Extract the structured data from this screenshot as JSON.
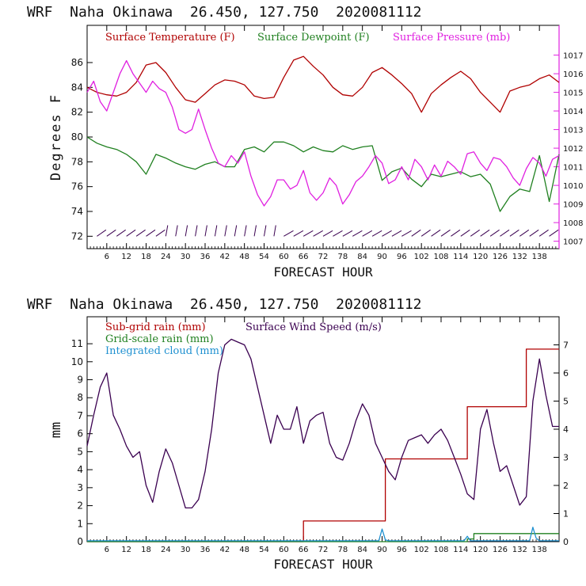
{
  "charts": [
    {
      "title": "WRF  Naha Okinawa  26.450, 127.750  2020081112",
      "xlabel": "FORECAST HOUR",
      "ylabel": "Degrees F",
      "legend": [
        {
          "label": "Surface Temperature (F)",
          "color": "#b00000"
        },
        {
          "label": "Surface Dewpoint (F)",
          "color": "#208020"
        },
        {
          "label": "Surface Pressure (mb)",
          "color": "#e020e0"
        }
      ]
    },
    {
      "title": "WRF  Naha Okinawa  26.450, 127.750  2020081112",
      "xlabel": "FORECAST HOUR",
      "ylabel": "mm",
      "legend": [
        {
          "label": "Sub-grid rain (mm)",
          "color": "#b00000"
        },
        {
          "label": "Grid-scale rain (mm)",
          "color": "#208020"
        },
        {
          "label": "Integrated cloud (mm)",
          "color": "#1e90d0"
        },
        {
          "label": "Surface Wind Speed (m/s)",
          "color": "#3a0050"
        }
      ]
    }
  ],
  "chart_data": [
    {
      "type": "line",
      "title": "WRF  Naha Okinawa  26.450, 127.750  2020081112",
      "xlabel": "FORECAST HOUR",
      "ylabel": "Degrees F",
      "xlim": [
        0,
        144
      ],
      "xticks": [
        6,
        12,
        18,
        24,
        30,
        36,
        42,
        48,
        54,
        60,
        66,
        72,
        78,
        84,
        90,
        96,
        102,
        108,
        114,
        120,
        126,
        132,
        138
      ],
      "ylim": [
        71,
        89
      ],
      "yticks": [
        72,
        74,
        76,
        78,
        80,
        82,
        84,
        86
      ],
      "y2lim": [
        1006.6,
        1018.6
      ],
      "y2ticks": [
        1007,
        1008,
        1009,
        1010,
        1011,
        1012,
        1013,
        1014,
        1015,
        1016,
        1017
      ],
      "series": [
        {
          "name": "Surface Temperature (F)",
          "color": "#b00000",
          "axis": "left",
          "x": [
            0,
            3,
            6,
            9,
            12,
            15,
            18,
            21,
            24,
            27,
            30,
            33,
            36,
            39,
            42,
            45,
            48,
            51,
            54,
            57,
            60,
            63,
            66,
            69,
            72,
            75,
            78,
            81,
            84,
            87,
            90,
            93,
            96,
            99,
            102,
            105,
            108,
            111,
            114,
            117,
            120,
            123,
            126,
            129,
            132,
            135,
            138,
            141,
            144
          ],
          "y": [
            84.0,
            83.6,
            83.4,
            83.3,
            83.6,
            84.4,
            85.8,
            86.0,
            85.2,
            84.0,
            83.0,
            82.8,
            83.5,
            84.2,
            84.6,
            84.5,
            84.2,
            83.3,
            83.1,
            83.2,
            84.8,
            86.2,
            86.5,
            85.7,
            85.0,
            84.0,
            83.4,
            83.3,
            84.0,
            85.2,
            85.6,
            85.0,
            84.3,
            83.5,
            82.0,
            83.5,
            84.2,
            84.8,
            85.3,
            84.7,
            83.6,
            82.8,
            82.0,
            83.7,
            84.0,
            84.2,
            84.7,
            85.0,
            84.4
          ]
        },
        {
          "name": "Surface Dewpoint (F)",
          "color": "#208020",
          "axis": "left",
          "x": [
            0,
            3,
            6,
            9,
            12,
            15,
            18,
            21,
            24,
            27,
            30,
            33,
            36,
            39,
            42,
            45,
            48,
            51,
            54,
            57,
            60,
            63,
            66,
            69,
            72,
            75,
            78,
            81,
            84,
            87,
            90,
            93,
            96,
            99,
            102,
            105,
            108,
            111,
            114,
            117,
            120,
            123,
            126,
            129,
            132,
            135,
            138,
            141,
            144
          ],
          "y": [
            80.0,
            79.5,
            79.2,
            79.0,
            78.6,
            78.0,
            77.0,
            78.6,
            78.3,
            77.9,
            77.6,
            77.4,
            77.8,
            78.0,
            77.6,
            77.6,
            79.0,
            79.2,
            78.8,
            79.6,
            79.6,
            79.3,
            78.8,
            79.2,
            78.9,
            78.8,
            79.3,
            79.0,
            79.2,
            79.3,
            76.5,
            77.2,
            77.5,
            76.6,
            76.0,
            77.0,
            76.8,
            77.0,
            77.2,
            76.8,
            77.0,
            76.2,
            74.0,
            75.2,
            75.8,
            75.6,
            78.5,
            74.8,
            78.6
          ]
        },
        {
          "name": "Surface Pressure (mb)",
          "color": "#e020e0",
          "axis": "right",
          "x": [
            0,
            2,
            4,
            6,
            8,
            10,
            12,
            14,
            16,
            18,
            20,
            22,
            24,
            26,
            28,
            30,
            32,
            34,
            36,
            38,
            40,
            42,
            44,
            46,
            48,
            50,
            52,
            54,
            56,
            58,
            60,
            62,
            64,
            66,
            68,
            70,
            72,
            74,
            76,
            78,
            80,
            82,
            84,
            86,
            88,
            90,
            92,
            94,
            96,
            98,
            100,
            102,
            104,
            106,
            108,
            110,
            112,
            114,
            116,
            118,
            120,
            122,
            124,
            126,
            128,
            130,
            132,
            134,
            136,
            138,
            140,
            142,
            144
          ],
          "y": [
            1015.0,
            1015.6,
            1014.5,
            1014.0,
            1015.0,
            1016.0,
            1016.7,
            1016.0,
            1015.5,
            1015.0,
            1015.6,
            1015.2,
            1015.0,
            1014.2,
            1013.0,
            1012.8,
            1013.0,
            1014.1,
            1013.0,
            1012.0,
            1011.2,
            1011.0,
            1011.6,
            1011.2,
            1011.8,
            1010.5,
            1009.5,
            1008.9,
            1009.4,
            1010.3,
            1010.3,
            1009.8,
            1010.0,
            1010.8,
            1009.6,
            1009.2,
            1009.6,
            1010.4,
            1010.0,
            1009.0,
            1009.5,
            1010.2,
            1010.5,
            1011.0,
            1011.6,
            1011.2,
            1010.1,
            1010.3,
            1011.0,
            1010.3,
            1011.4,
            1011.0,
            1010.3,
            1011.1,
            1010.5,
            1011.3,
            1011.0,
            1010.6,
            1011.7,
            1011.8,
            1011.2,
            1010.8,
            1011.5,
            1011.4,
            1011.0,
            1010.4,
            1010.0,
            1010.9,
            1011.5,
            1011.2,
            1010.5,
            1011.4,
            1011.6
          ]
        }
      ],
      "wind_barbs": "row of wind barbs along y ≈ 72"
    },
    {
      "type": "line",
      "title": "WRF  Naha Okinawa  26.450, 127.750  2020081112",
      "xlabel": "FORECAST HOUR",
      "ylabel": "mm",
      "xlim": [
        0,
        144
      ],
      "xticks": [
        6,
        12,
        18,
        24,
        30,
        36,
        42,
        48,
        54,
        60,
        66,
        72,
        78,
        84,
        90,
        96,
        102,
        108,
        114,
        120,
        126,
        132,
        138
      ],
      "ylim": [
        0,
        12.5
      ],
      "yticks": [
        0,
        1,
        2,
        3,
        4,
        5,
        6,
        7,
        8,
        9,
        10,
        11
      ],
      "y2lim": [
        0,
        8.0
      ],
      "y2ticks": [
        0,
        1,
        2,
        3,
        4,
        5,
        6,
        7
      ],
      "series": [
        {
          "name": "Sub-grid rain (mm)",
          "color": "#b00000",
          "axis": "left",
          "step": true,
          "x": [
            0,
            66,
            66,
            91,
            91,
            116,
            116,
            134,
            134,
            144
          ],
          "y": [
            0,
            0,
            1.15,
            1.15,
            4.6,
            4.6,
            7.5,
            7.5,
            10.7,
            10.7
          ]
        },
        {
          "name": "Grid-scale rain (mm)",
          "color": "#208020",
          "axis": "left",
          "step": true,
          "x": [
            0,
            116,
            116,
            118,
            118,
            144
          ],
          "y": [
            0,
            0,
            0.15,
            0.15,
            0.45,
            0.45
          ]
        },
        {
          "name": "Integrated cloud (mm)",
          "color": "#1e90d0",
          "axis": "left",
          "x": [
            0,
            89,
            90,
            91,
            92,
            115,
            116,
            117,
            118,
            135,
            136,
            137,
            138,
            144
          ],
          "y": [
            0.05,
            0.05,
            0.7,
            0.1,
            0.05,
            0.05,
            0.3,
            0.05,
            0.05,
            0.05,
            0.8,
            0.2,
            0.05,
            0.05
          ]
        },
        {
          "name": "Surface Wind Speed (m/s)",
          "color": "#3a0050",
          "axis": "right",
          "x": [
            0,
            2,
            4,
            6,
            8,
            10,
            12,
            14,
            16,
            18,
            20,
            22,
            24,
            26,
            28,
            30,
            32,
            34,
            36,
            38,
            40,
            42,
            44,
            46,
            48,
            50,
            52,
            54,
            56,
            58,
            60,
            62,
            64,
            66,
            68,
            70,
            72,
            74,
            76,
            78,
            80,
            82,
            84,
            86,
            88,
            90,
            92,
            94,
            96,
            98,
            100,
            102,
            104,
            106,
            108,
            110,
            112,
            114,
            116,
            118,
            120,
            122,
            124,
            126,
            128,
            130,
            132,
            134,
            136,
            138,
            140,
            142,
            144
          ],
          "y": [
            3.4,
            4.5,
            5.5,
            6.0,
            4.5,
            4.0,
            3.4,
            3.0,
            3.2,
            2.0,
            1.4,
            2.5,
            3.3,
            2.8,
            2.0,
            1.2,
            1.2,
            1.5,
            2.5,
            4.0,
            6.0,
            7.0,
            7.2,
            7.1,
            7.0,
            6.5,
            5.5,
            4.5,
            3.5,
            4.5,
            4.0,
            4.0,
            4.8,
            3.5,
            4.3,
            4.5,
            4.6,
            3.5,
            3.0,
            2.9,
            3.5,
            4.3,
            4.9,
            4.5,
            3.5,
            3.0,
            2.5,
            2.2,
            3.0,
            3.6,
            3.7,
            3.8,
            3.5,
            3.8,
            4.0,
            3.6,
            3.0,
            2.4,
            1.7,
            1.5,
            4.0,
            4.7,
            3.5,
            2.5,
            2.7,
            2.0,
            1.3,
            1.6,
            5.0,
            6.5,
            5.2,
            4.1,
            4.1
          ]
        }
      ]
    }
  ]
}
